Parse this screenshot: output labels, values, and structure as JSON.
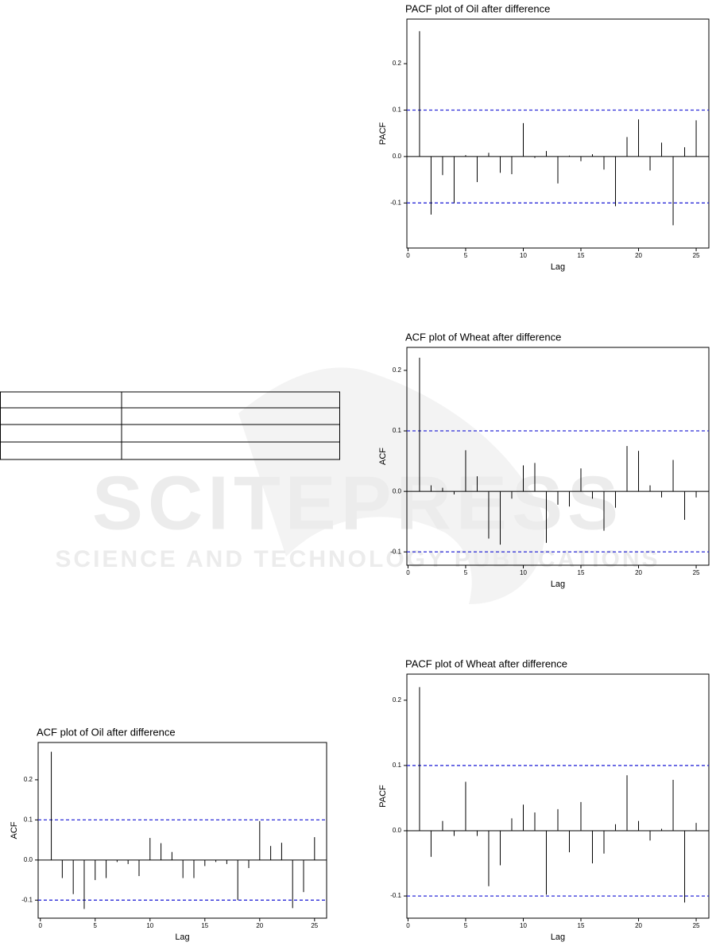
{
  "watermark": {
    "title": "SCITEPRESS",
    "subtitle": "SCIENCE AND TECHNOLOGY PUBLICATIONS"
  },
  "chart_data": [
    {
      "type": "stem",
      "title": "PACF plot of Oil after difference",
      "x_label": "Lag",
      "y_label": "PACF",
      "x": [
        1,
        2,
        3,
        4,
        5,
        6,
        7,
        8,
        9,
        10,
        11,
        12,
        13,
        14,
        15,
        16,
        17,
        18,
        19,
        20,
        21,
        22,
        23,
        24,
        25
      ],
      "values": [
        0.27,
        -0.125,
        -0.04,
        -0.1,
        0.003,
        -0.055,
        0.008,
        -0.035,
        -0.038,
        0.072,
        -0.003,
        0.012,
        -0.058,
        0.002,
        -0.01,
        0.005,
        -0.028,
        -0.107,
        0.042,
        0.08,
        -0.03,
        0.03,
        -0.148,
        0.02,
        0.078
      ],
      "color": "#000000",
      "ci": [
        0.1,
        -0.1
      ],
      "ci_color": "#2b2bd8",
      "xlim": [
        -0.1,
        26.1
      ],
      "xticks": [
        0,
        5,
        10,
        15,
        20,
        25
      ],
      "ylim": [
        -0.197,
        0.296
      ],
      "yticks": [
        -0.1,
        {
          "value": 0,
          "label": "0.0"
        },
        0.1,
        0.2
      ]
    },
    {
      "type": "stem",
      "title": "ACF plot of Wheat after difference",
      "x_label": "Lag",
      "y_label": "ACF",
      "x": [
        1,
        2,
        3,
        4,
        5,
        6,
        7,
        8,
        9,
        10,
        11,
        12,
        13,
        14,
        15,
        16,
        17,
        18,
        19,
        20,
        21,
        22,
        23,
        24,
        25
      ],
      "values": [
        0.221,
        0.01,
        0.006,
        -0.005,
        0.068,
        0.025,
        -0.078,
        -0.088,
        -0.012,
        0.043,
        0.047,
        -0.085,
        -0.022,
        -0.025,
        0.038,
        -0.012,
        -0.065,
        -0.027,
        0.075,
        0.067,
        0.01,
        -0.01,
        0.052,
        -0.047,
        -0.01
      ],
      "color": "#000000",
      "ci": [
        0.1,
        -0.1
      ],
      "ci_color": "#2b2bd8",
      "xlim": [
        -0.1,
        26.1
      ],
      "xticks": [
        0,
        5,
        10,
        15,
        20,
        25
      ],
      "ylim": [
        -0.122,
        0.238
      ],
      "yticks": [
        -0.1,
        {
          "value": 0,
          "label": "0.0"
        },
        0.1,
        0.2
      ]
    },
    {
      "type": "stem",
      "title": "PACF plot of Wheat after difference",
      "x_label": "Lag",
      "y_label": "PACF",
      "x": [
        1,
        2,
        3,
        4,
        5,
        6,
        7,
        8,
        9,
        10,
        11,
        12,
        13,
        14,
        15,
        16,
        17,
        18,
        19,
        20,
        21,
        22,
        23,
        24,
        25
      ],
      "values": [
        0.22,
        -0.04,
        0.015,
        -0.008,
        0.075,
        -0.008,
        -0.085,
        -0.053,
        0.019,
        0.04,
        0.028,
        -0.098,
        0.033,
        -0.033,
        0.044,
        -0.05,
        -0.035,
        0.01,
        0.085,
        0.015,
        -0.015,
        0.003,
        0.078,
        -0.11,
        0.012
      ],
      "color": "#000000",
      "ci": [
        0.1,
        -0.1
      ],
      "ci_color": "#2b2bd8",
      "xlim": [
        -0.1,
        26.1
      ],
      "xticks": [
        0,
        5,
        10,
        15,
        20,
        25
      ],
      "ylim": [
        -0.134,
        0.24
      ],
      "yticks": [
        -0.1,
        {
          "value": 0,
          "label": "0.0"
        },
        0.1,
        0.2
      ]
    },
    {
      "type": "stem",
      "title": "ACF plot of Oil after difference",
      "x_label": "Lag",
      "y_label": "ACF",
      "x": [
        1,
        2,
        3,
        4,
        5,
        6,
        7,
        8,
        9,
        10,
        11,
        12,
        13,
        14,
        15,
        16,
        17,
        18,
        19,
        20,
        21,
        22,
        23,
        24,
        25
      ],
      "values": [
        0.27,
        -0.045,
        -0.085,
        -0.122,
        -0.05,
        -0.045,
        -0.005,
        -0.01,
        -0.04,
        0.055,
        0.042,
        0.02,
        -0.045,
        -0.045,
        -0.015,
        -0.005,
        -0.01,
        -0.1,
        -0.02,
        0.097,
        0.035,
        0.043,
        -0.12,
        -0.08,
        0.057
      ],
      "color": "#000000",
      "ci": [
        0.1,
        -0.1
      ],
      "ci_color": "#2b2bd8",
      "xlim": [
        -0.2,
        26.1
      ],
      "xticks": [
        0,
        5,
        10,
        15,
        20,
        25
      ],
      "ylim": [
        -0.145,
        0.293
      ],
      "yticks": [
        -0.1,
        {
          "value": 0,
          "label": "0.0"
        },
        0.1,
        0.2
      ]
    }
  ]
}
